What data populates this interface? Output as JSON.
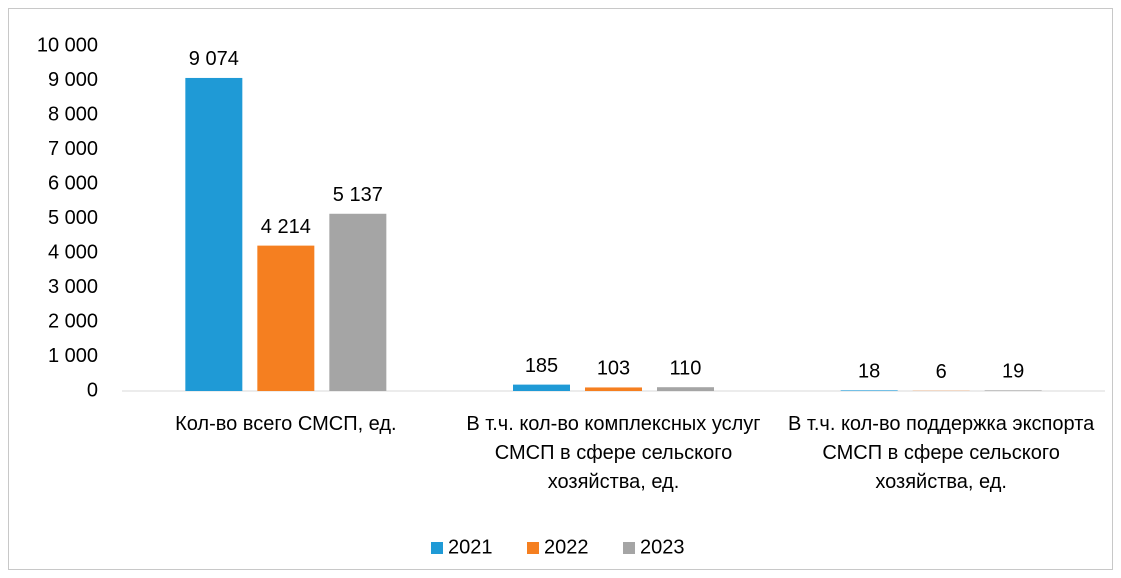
{
  "chart_data": {
    "type": "bar",
    "categories": [
      "Кол-во всего СМСП, ед.",
      "В т.ч. кол-во комплексных услуг СМСП в сфере сельского хозяйства, ед.",
      "В т.ч. кол-во поддержка экспорта СМСП в сфере сельского хозяйства, ед."
    ],
    "series": [
      {
        "name": "2021",
        "color": "#1f9ad6",
        "values": [
          9074,
          185,
          18
        ],
        "value_labels": [
          "9 074",
          "185",
          "18"
        ]
      },
      {
        "name": "2022",
        "color": "#f57f20",
        "values": [
          4214,
          103,
          6
        ],
        "value_labels": [
          "4 214",
          "103",
          "6"
        ]
      },
      {
        "name": "2023",
        "color": "#a5a5a5",
        "values": [
          5137,
          110,
          19
        ],
        "value_labels": [
          "5 137",
          "110",
          "19"
        ]
      }
    ],
    "ylim": [
      0,
      10000
    ],
    "yticks": [
      0,
      {
        "value": 1000,
        "label": "1 000"
      },
      {
        "value": 2000,
        "label": "2 000"
      },
      {
        "value": 3000,
        "label": "3 000"
      },
      {
        "value": 4000,
        "label": "4 000"
      },
      {
        "value": 5000,
        "label": "5 000"
      },
      {
        "value": 6000,
        "label": "6 000"
      },
      {
        "value": 7000,
        "label": "7 000"
      },
      {
        "value": 8000,
        "label": "8 000"
      },
      {
        "value": 9000,
        "label": "9 000"
      },
      {
        "value": 10000,
        "label": "10 000"
      }
    ],
    "grid": false,
    "legend": "bottom"
  }
}
